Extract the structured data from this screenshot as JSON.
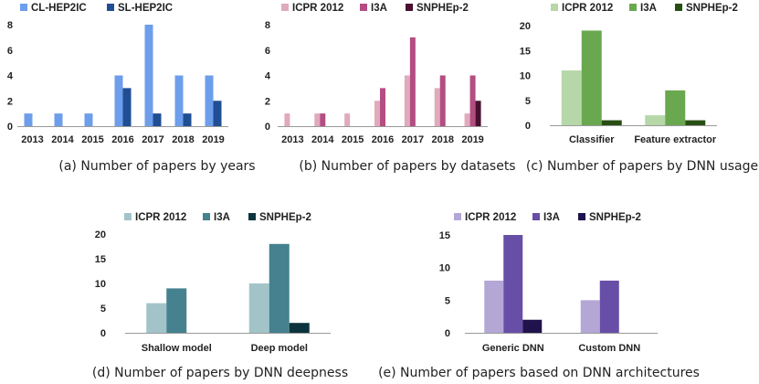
{
  "chart_data": [
    {
      "id": "a",
      "type": "bar",
      "categories": [
        "2013",
        "2014",
        "2015",
        "2016",
        "2017",
        "2018",
        "2019"
      ],
      "series": [
        {
          "name": "CL-HEP2IC",
          "color": "#6d9eeb",
          "values": [
            1,
            1,
            1,
            4,
            8,
            4,
            4
          ]
        },
        {
          "name": "SL-HEP2IC",
          "color": "#1f4e94",
          "values": [
            0,
            0,
            0,
            3,
            1,
            1,
            2
          ]
        }
      ],
      "ylim": [
        0,
        8
      ],
      "yticks": [
        0,
        2,
        4,
        6,
        8
      ],
      "legend": "top-left",
      "caption": "(a) Number of papers by years"
    },
    {
      "id": "b",
      "type": "bar",
      "categories": [
        "2013",
        "2014",
        "2015",
        "2016",
        "2017",
        "2018",
        "2019"
      ],
      "series": [
        {
          "name": "ICPR 2012",
          "color": "#e0aabb",
          "values": [
            1,
            1,
            1,
            2,
            4,
            3,
            1
          ]
        },
        {
          "name": "I3A",
          "color": "#b34d82",
          "values": [
            0,
            1,
            0,
            3,
            7,
            4,
            4
          ]
        },
        {
          "name": "SNPHEp-2",
          "color": "#4a1030",
          "values": [
            0,
            0,
            0,
            0,
            0,
            0,
            2
          ]
        }
      ],
      "ylim": [
        0,
        8
      ],
      "yticks": [
        0,
        2,
        4,
        6,
        8
      ],
      "legend": "top-left",
      "caption": "(b) Number of papers by datasets"
    },
    {
      "id": "c",
      "type": "bar",
      "categories": [
        "Classifier",
        "Feature extractor"
      ],
      "series": [
        {
          "name": "ICPR 2012",
          "color": "#b6d7a8",
          "values": [
            11,
            2
          ]
        },
        {
          "name": "I3A",
          "color": "#6aa84f",
          "values": [
            19,
            7
          ]
        },
        {
          "name": "SNPHEp-2",
          "color": "#274e13",
          "values": [
            1,
            1
          ]
        }
      ],
      "ylim": [
        0,
        20
      ],
      "yticks": [
        0,
        5,
        10,
        15,
        20
      ],
      "legend": "top-left",
      "caption": "(c) Number of papers by DNN usage"
    },
    {
      "id": "d",
      "type": "bar",
      "categories": [
        "Shallow model",
        "Deep model"
      ],
      "series": [
        {
          "name": "ICPR 2012",
          "color": "#a2c4c9",
          "values": [
            6,
            10
          ]
        },
        {
          "name": "I3A",
          "color": "#45818e",
          "values": [
            9,
            18
          ]
        },
        {
          "name": "SNPHEp-2",
          "color": "#0c343d",
          "values": [
            0,
            2
          ]
        }
      ],
      "ylim": [
        0,
        20
      ],
      "yticks": [
        0,
        5,
        10,
        15,
        20
      ],
      "legend": "top-left",
      "caption": "(d) Number of papers by DNN deepness"
    },
    {
      "id": "e",
      "type": "bar",
      "categories": [
        "Generic DNN",
        "Custom DNN"
      ],
      "series": [
        {
          "name": "ICPR 2012",
          "color": "#b4a7d6",
          "values": [
            8,
            5
          ]
        },
        {
          "name": "I3A",
          "color": "#674ea7",
          "values": [
            15,
            8
          ]
        },
        {
          "name": "SNPHEp-2",
          "color": "#20124d",
          "values": [
            2,
            0
          ]
        }
      ],
      "ylim": [
        0,
        15
      ],
      "yticks": [
        0,
        5,
        10,
        15
      ],
      "legend": "top-left",
      "caption": "(e) Number of papers based on DNN architectures"
    }
  ]
}
